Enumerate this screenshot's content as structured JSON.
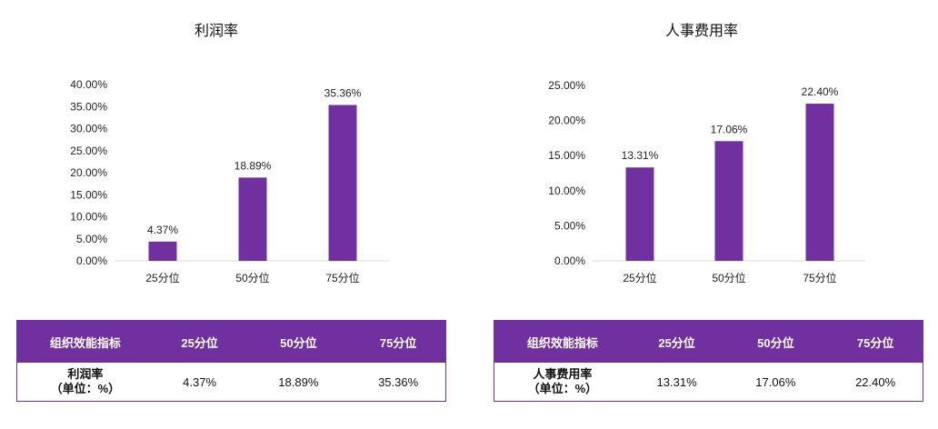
{
  "chart_data": [
    {
      "type": "bar",
      "title": "利润率",
      "categories": [
        "25分位",
        "50分位",
        "75分位"
      ],
      "values": [
        4.37,
        18.89,
        35.36
      ],
      "value_labels": [
        "4.37%",
        "18.89%",
        "35.36%"
      ],
      "yticks": [
        "0.00%",
        "5.00%",
        "10.00%",
        "15.00%",
        "20.00%",
        "25.00%",
        "30.00%",
        "35.00%",
        "40.00%"
      ],
      "ylim": [
        0,
        40
      ],
      "ystep": 5,
      "color": "#7030a0",
      "grid": false,
      "legend": "none"
    },
    {
      "type": "bar",
      "title": "人事费用率",
      "categories": [
        "25分位",
        "50分位",
        "75分位"
      ],
      "values": [
        13.31,
        17.06,
        22.4
      ],
      "value_labels": [
        "13.31%",
        "17.06%",
        "22.40%"
      ],
      "yticks": [
        "0.00%",
        "5.00%",
        "10.00%",
        "15.00%",
        "20.00%",
        "25.00%"
      ],
      "ylim": [
        0,
        25
      ],
      "ystep": 5,
      "color": "#7030a0",
      "grid": false,
      "legend": "none"
    }
  ],
  "tables": [
    {
      "headers": [
        "组织效能指标",
        "25分位",
        "50分位",
        "75分位"
      ],
      "row_label_line1": "利润率",
      "row_label_line2": "（单位：%）",
      "cells": [
        "4.37%",
        "18.89%",
        "35.36%"
      ]
    },
    {
      "headers": [
        "组织效能指标",
        "25分位",
        "50分位",
        "75分位"
      ],
      "row_label_line1": "人事费用率",
      "row_label_line2": "（单位：%）",
      "cells": [
        "13.31%",
        "17.06%",
        "22.40%"
      ]
    }
  ]
}
